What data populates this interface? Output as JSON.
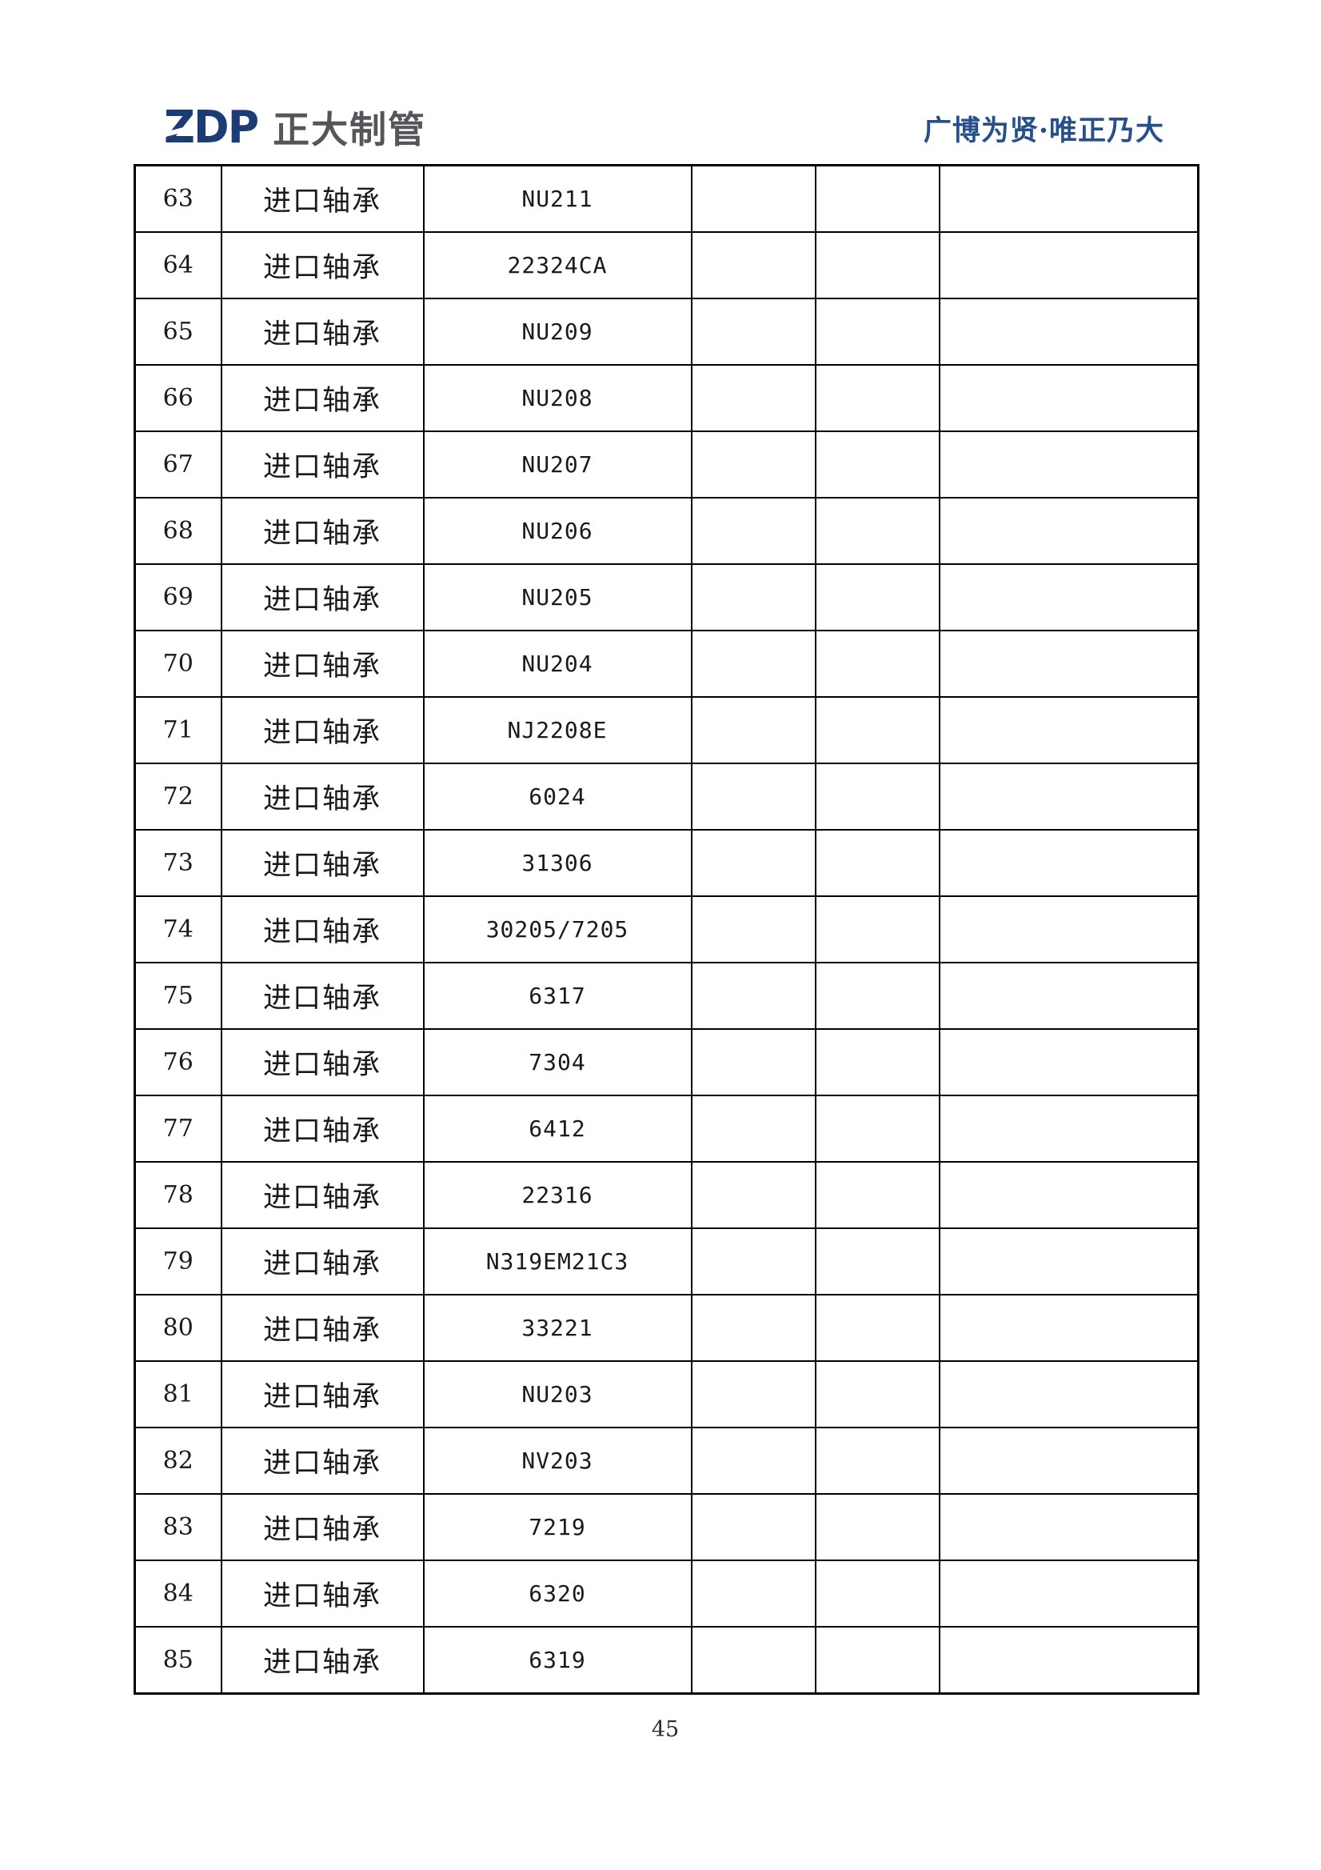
{
  "header": {
    "logo_text": "ZDP",
    "logo_company": "正大制管",
    "slogan": "广博为贤·唯正乃大"
  },
  "colors": {
    "logo_blue": "#1d3c74",
    "logo_gray": "#54565a",
    "slogan_blue": "#27508a",
    "table_border": "#000000"
  },
  "table": {
    "rows": [
      [
        "63",
        "进口轴承",
        "NU211",
        "",
        "",
        ""
      ],
      [
        "64",
        "进口轴承",
        "22324CA",
        "",
        "",
        ""
      ],
      [
        "65",
        "进口轴承",
        "NU209",
        "",
        "",
        ""
      ],
      [
        "66",
        "进口轴承",
        "NU208",
        "",
        "",
        ""
      ],
      [
        "67",
        "进口轴承",
        "NU207",
        "",
        "",
        ""
      ],
      [
        "68",
        "进口轴承",
        "NU206",
        "",
        "",
        ""
      ],
      [
        "69",
        "进口轴承",
        "NU205",
        "",
        "",
        ""
      ],
      [
        "70",
        "进口轴承",
        "NU204",
        "",
        "",
        ""
      ],
      [
        "71",
        "进口轴承",
        "NJ2208E",
        "",
        "",
        ""
      ],
      [
        "72",
        "进口轴承",
        "6024",
        "",
        "",
        ""
      ],
      [
        "73",
        "进口轴承",
        "31306",
        "",
        "",
        ""
      ],
      [
        "74",
        "进口轴承",
        "30205/7205",
        "",
        "",
        ""
      ],
      [
        "75",
        "进口轴承",
        "6317",
        "",
        "",
        ""
      ],
      [
        "76",
        "进口轴承",
        "7304",
        "",
        "",
        ""
      ],
      [
        "77",
        "进口轴承",
        "6412",
        "",
        "",
        ""
      ],
      [
        "78",
        "进口轴承",
        "22316",
        "",
        "",
        ""
      ],
      [
        "79",
        "进口轴承",
        "N319EM21C3",
        "",
        "",
        ""
      ],
      [
        "80",
        "进口轴承",
        "33221",
        "",
        "",
        ""
      ],
      [
        "81",
        "进口轴承",
        "NU203",
        "",
        "",
        ""
      ],
      [
        "82",
        "进口轴承",
        "NV203",
        "",
        "",
        ""
      ],
      [
        "83",
        "进口轴承",
        "7219",
        "",
        "",
        ""
      ],
      [
        "84",
        "进口轴承",
        "6320",
        "",
        "",
        ""
      ],
      [
        "85",
        "进口轴承",
        "6319",
        "",
        "",
        ""
      ]
    ]
  },
  "footer": {
    "page_number": "45"
  }
}
